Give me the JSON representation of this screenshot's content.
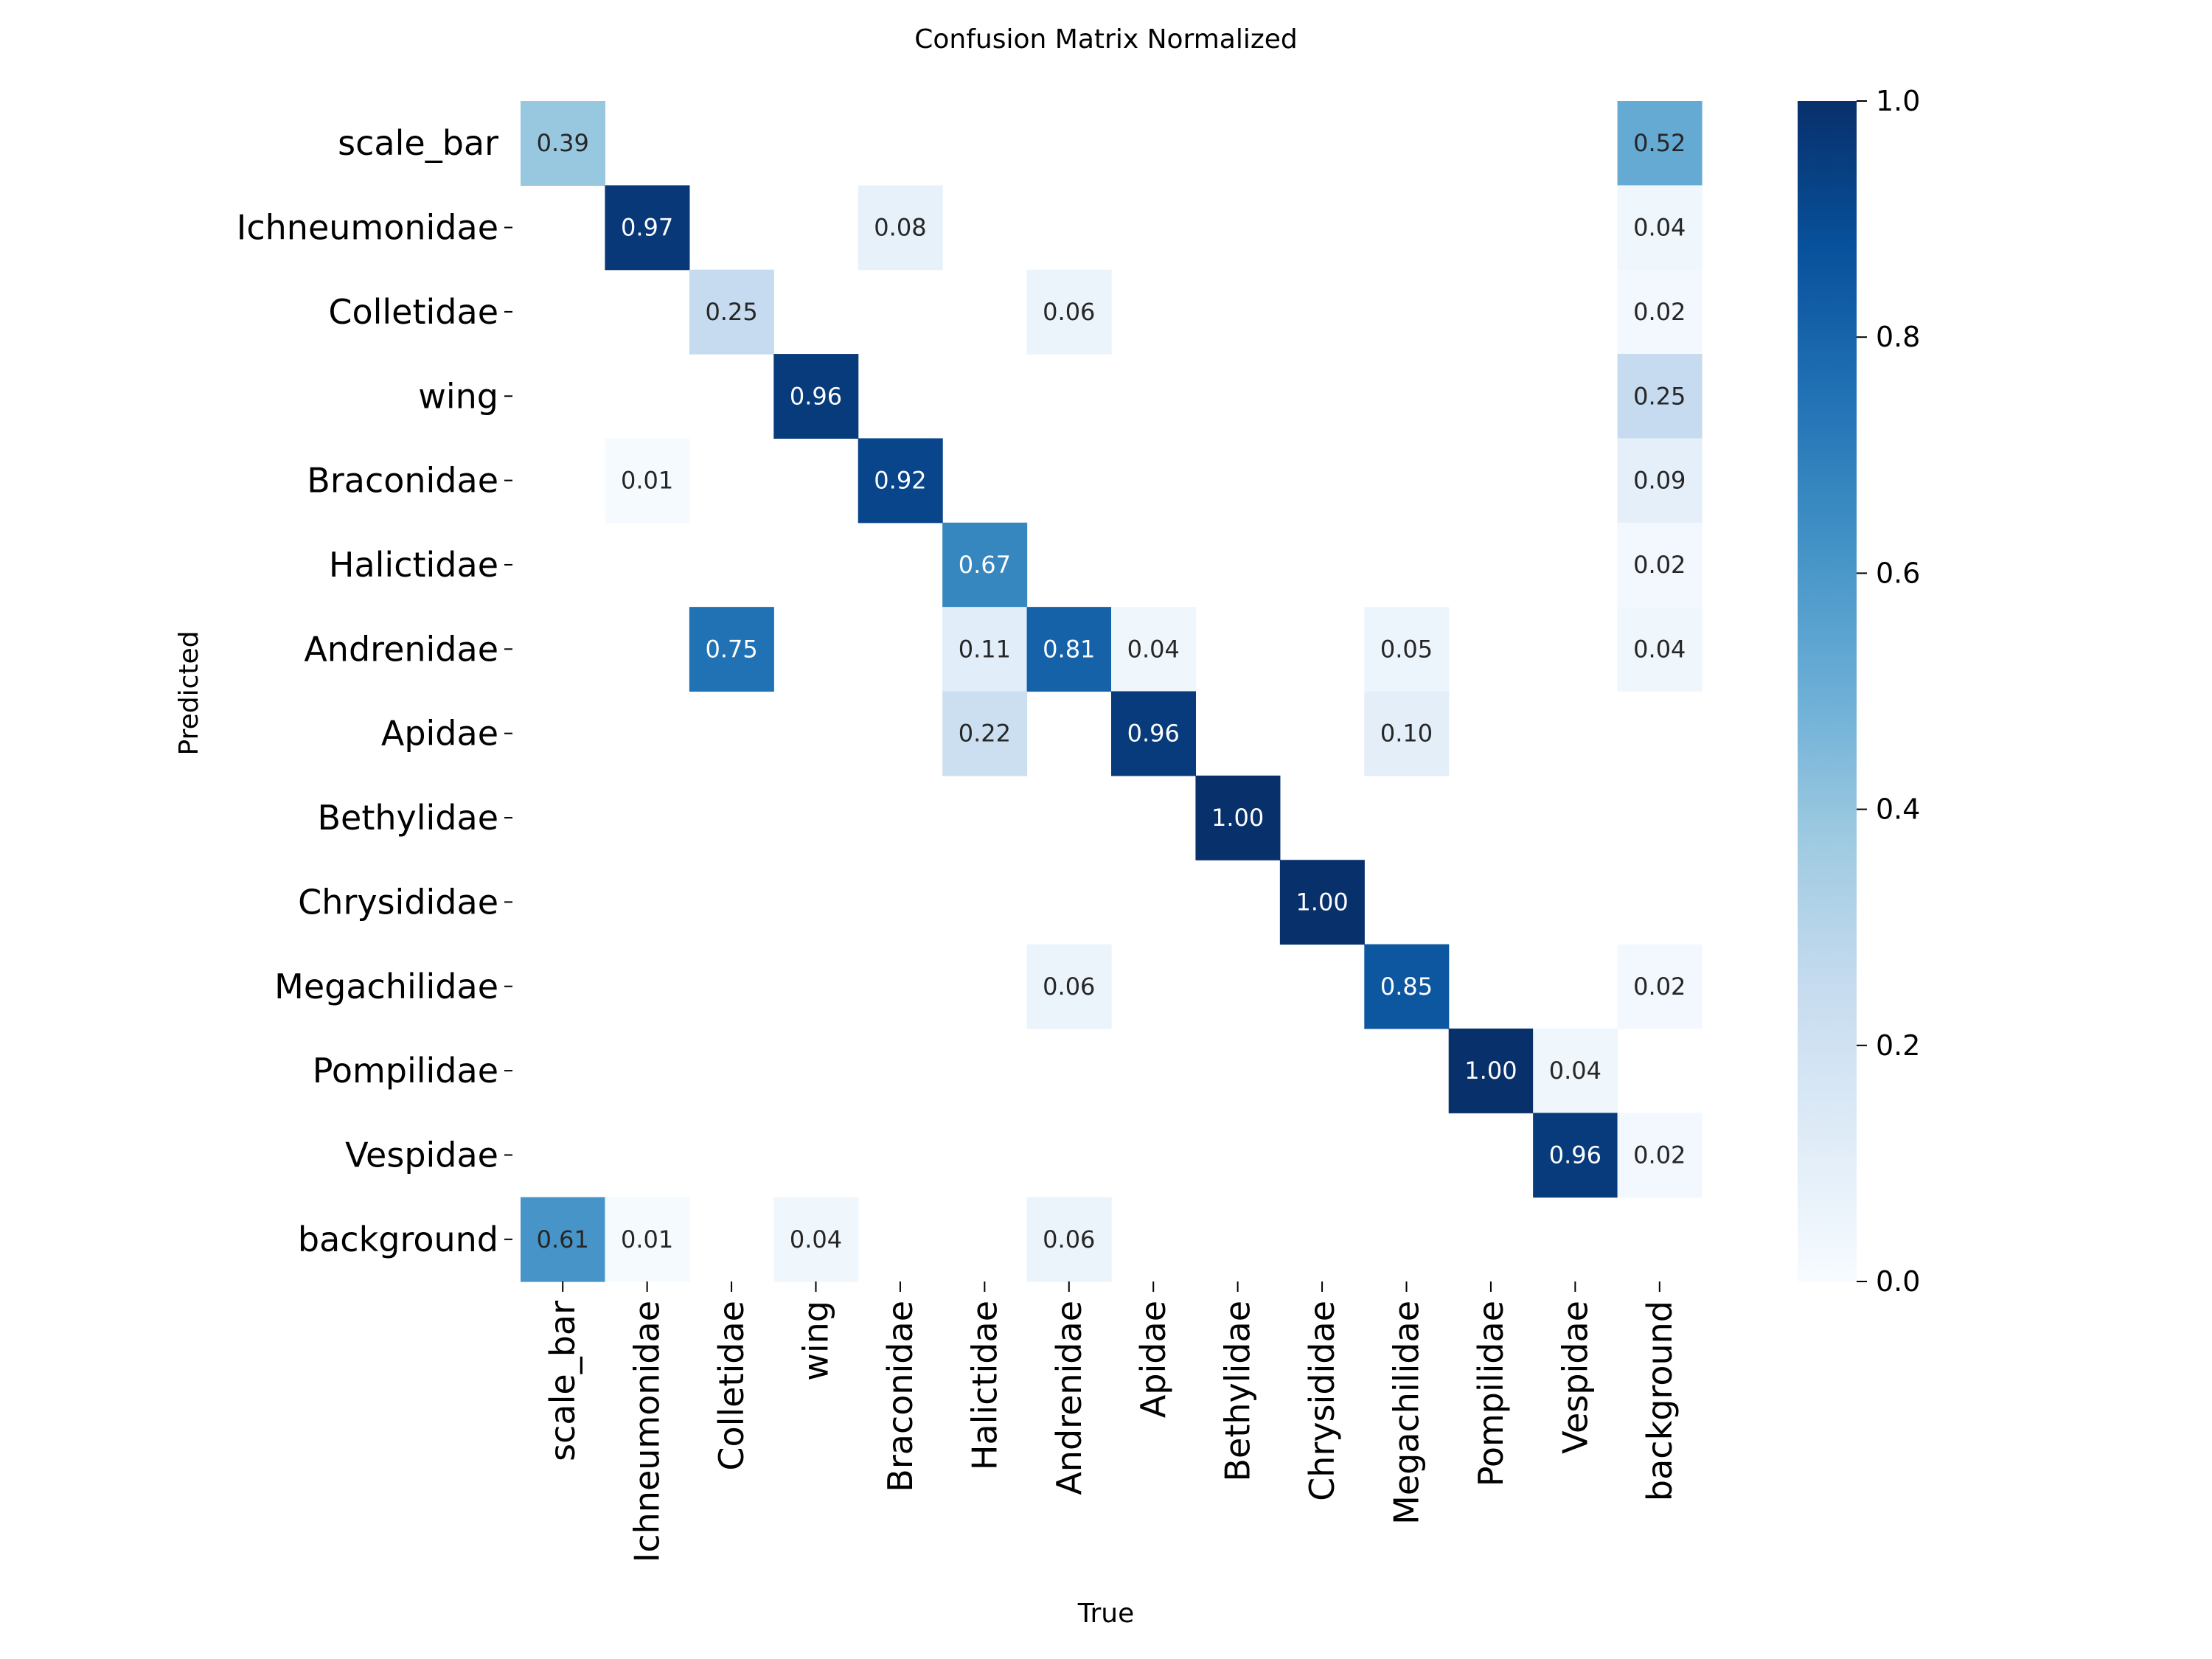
{
  "chart_data": {
    "type": "heatmap",
    "title": "Confusion Matrix Normalized",
    "xlabel": "True",
    "ylabel": "Predicted",
    "x_categories": [
      "scale_bar",
      "Ichneumonidae",
      "Colletidae",
      "wing",
      "Braconidae",
      "Halictidae",
      "Andrenidae",
      "Apidae",
      "Bethylidae",
      "Chrysididae",
      "Megachilidae",
      "Pompilidae",
      "Vespidae",
      "background"
    ],
    "y_categories": [
      "scale_bar",
      "Ichneumonidae",
      "Colletidae",
      "wing",
      "Braconidae",
      "Halictidae",
      "Andrenidae",
      "Apidae",
      "Bethylidae",
      "Chrysididae",
      "Megachilidae",
      "Pompilidae",
      "Vespidae",
      "background"
    ],
    "values": [
      [
        0.39,
        null,
        null,
        null,
        null,
        null,
        null,
        null,
        null,
        null,
        null,
        null,
        null,
        0.52
      ],
      [
        null,
        0.97,
        null,
        null,
        0.08,
        null,
        null,
        null,
        null,
        null,
        null,
        null,
        null,
        0.04
      ],
      [
        null,
        null,
        0.25,
        null,
        null,
        null,
        0.06,
        null,
        null,
        null,
        null,
        null,
        null,
        0.02
      ],
      [
        null,
        null,
        null,
        0.96,
        null,
        null,
        null,
        null,
        null,
        null,
        null,
        null,
        null,
        0.25
      ],
      [
        null,
        0.01,
        null,
        null,
        0.92,
        null,
        null,
        null,
        null,
        null,
        null,
        null,
        null,
        0.09
      ],
      [
        null,
        null,
        null,
        null,
        null,
        0.67,
        null,
        null,
        null,
        null,
        null,
        null,
        null,
        0.02
      ],
      [
        null,
        null,
        0.75,
        null,
        null,
        0.11,
        0.81,
        0.04,
        null,
        null,
        0.05,
        null,
        null,
        0.04
      ],
      [
        null,
        null,
        null,
        null,
        null,
        0.22,
        null,
        0.96,
        null,
        null,
        0.1,
        null,
        null,
        null
      ],
      [
        null,
        null,
        null,
        null,
        null,
        null,
        null,
        null,
        1.0,
        null,
        null,
        null,
        null,
        null
      ],
      [
        null,
        null,
        null,
        null,
        null,
        null,
        null,
        null,
        null,
        1.0,
        null,
        null,
        null,
        null
      ],
      [
        null,
        null,
        null,
        null,
        null,
        null,
        0.06,
        null,
        null,
        null,
        0.85,
        null,
        null,
        0.02
      ],
      [
        null,
        null,
        null,
        null,
        null,
        null,
        null,
        null,
        null,
        null,
        null,
        1.0,
        0.04,
        null
      ],
      [
        null,
        null,
        null,
        null,
        null,
        null,
        null,
        null,
        null,
        null,
        null,
        null,
        0.96,
        0.02
      ],
      [
        0.61,
        0.01,
        null,
        0.04,
        null,
        null,
        0.06,
        null,
        null,
        null,
        null,
        null,
        null,
        null
      ]
    ],
    "colorbar": {
      "range": [
        0,
        1
      ],
      "ticks": [
        0.0,
        0.2,
        0.4,
        0.6,
        0.8,
        1.0
      ],
      "tick_labels": [
        "0.0",
        "0.2",
        "0.4",
        "0.6",
        "0.8",
        "1.0"
      ],
      "colormap": "Blues"
    },
    "value_format_decimals": 2
  }
}
